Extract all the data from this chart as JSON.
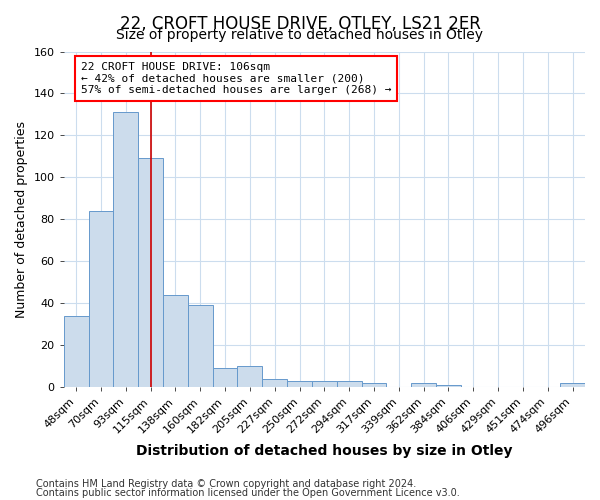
{
  "title": "22, CROFT HOUSE DRIVE, OTLEY, LS21 2ER",
  "subtitle": "Size of property relative to detached houses in Otley",
  "xlabel": "Distribution of detached houses by size in Otley",
  "ylabel": "Number of detached properties",
  "footnote1": "Contains HM Land Registry data © Crown copyright and database right 2024.",
  "footnote2": "Contains public sector information licensed under the Open Government Licence v3.0.",
  "bar_labels": [
    "48sqm",
    "70sqm",
    "93sqm",
    "115sqm",
    "138sqm",
    "160sqm",
    "182sqm",
    "205sqm",
    "227sqm",
    "250sqm",
    "272sqm",
    "294sqm",
    "317sqm",
    "339sqm",
    "362sqm",
    "384sqm",
    "406sqm",
    "429sqm",
    "451sqm",
    "474sqm",
    "496sqm"
  ],
  "bar_values": [
    34,
    84,
    131,
    109,
    44,
    39,
    9,
    10,
    4,
    3,
    3,
    3,
    2,
    0,
    2,
    1,
    0,
    0,
    0,
    0,
    2
  ],
  "bar_color": "#ccdcec",
  "bar_edge_color": "#6699cc",
  "vline_pos": 3.0,
  "annotation_line1": "22 CROFT HOUSE DRIVE: 106sqm",
  "annotation_line2": "← 42% of detached houses are smaller (200)",
  "annotation_line3": "57% of semi-detached houses are larger (268) →",
  "annotation_box_color": "white",
  "annotation_box_edgecolor": "red",
  "vline_color": "#cc0000",
  "ylim": [
    0,
    160
  ],
  "yticks": [
    0,
    20,
    40,
    60,
    80,
    100,
    120,
    140,
    160
  ],
  "bg_color": "white",
  "plot_bg_color": "white",
  "grid_color": "#ccddee",
  "title_fontsize": 12,
  "subtitle_fontsize": 10,
  "ylabel_fontsize": 9,
  "xlabel_fontsize": 10,
  "footnote_fontsize": 7,
  "tick_fontsize": 8,
  "annot_fontsize": 8
}
